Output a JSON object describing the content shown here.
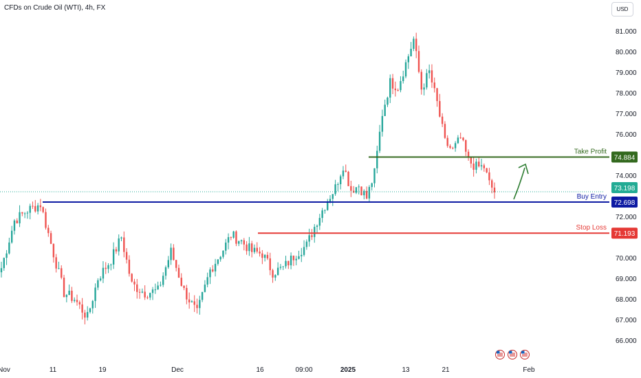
{
  "header": {
    "title": "CFDs on Crude Oil (WTI), 4h, FX",
    "currency": "USD"
  },
  "colors": {
    "up": "#26a69a",
    "down": "#ef5350",
    "take_profit": "#33691e",
    "buy_entry": "#0d1aa3",
    "stop_loss": "#e53935",
    "current": "#22ab94",
    "arrow": "#2e7d32"
  },
  "chart_data": {
    "type": "candlestick",
    "title": "CFDs on Crude Oil (WTI), 4h, FX",
    "ylim": [
      65.4,
      81.4
    ],
    "y_ticks": [
      "81.000",
      "80.000",
      "79.000",
      "78.000",
      "77.000",
      "76.000",
      "74.000",
      "72.000",
      "70.000",
      "69.000",
      "68.000",
      "67.000",
      "66.000"
    ],
    "x_ticks": [
      {
        "label": "Nov",
        "bold": false
      },
      {
        "label": "11",
        "bold": false
      },
      {
        "label": "19",
        "bold": false
      },
      {
        "label": "Dec",
        "bold": false
      },
      {
        "label": "16",
        "bold": false
      },
      {
        "label": "09:00",
        "bold": false
      },
      {
        "label": "2025",
        "bold": true
      },
      {
        "label": "13",
        "bold": false
      },
      {
        "label": "21",
        "bold": false
      },
      {
        "label": "Feb",
        "bold": false
      }
    ],
    "keypoints": [
      {
        "t": 0,
        "p": 69.5
      },
      {
        "t": 5,
        "p": 71.8
      },
      {
        "t": 10,
        "p": 72.3
      },
      {
        "t": 15,
        "p": 72.6
      },
      {
        "t": 20,
        "p": 70.2
      },
      {
        "t": 24,
        "p": 68.3
      },
      {
        "t": 28,
        "p": 68.0
      },
      {
        "t": 33,
        "p": 67.1
      },
      {
        "t": 37,
        "p": 69.0
      },
      {
        "t": 42,
        "p": 69.9
      },
      {
        "t": 46,
        "p": 71.0
      },
      {
        "t": 50,
        "p": 68.7
      },
      {
        "t": 55,
        "p": 68.3
      },
      {
        "t": 60,
        "p": 68.4
      },
      {
        "t": 65,
        "p": 70.3
      },
      {
        "t": 70,
        "p": 68.4
      },
      {
        "t": 75,
        "p": 67.3
      },
      {
        "t": 80,
        "p": 69.4
      },
      {
        "t": 85,
        "p": 70.4
      },
      {
        "t": 88,
        "p": 71.1
      },
      {
        "t": 92,
        "p": 70.8
      },
      {
        "t": 96,
        "p": 70.3
      },
      {
        "t": 100,
        "p": 70.2
      },
      {
        "t": 104,
        "p": 69.3
      },
      {
        "t": 108,
        "p": 69.5
      },
      {
        "t": 113,
        "p": 70.2
      },
      {
        "t": 117,
        "p": 70.6
      },
      {
        "t": 121,
        "p": 71.8
      },
      {
        "t": 125,
        "p": 72.8
      },
      {
        "t": 128,
        "p": 73.4
      },
      {
        "t": 131,
        "p": 74.5
      },
      {
        "t": 134,
        "p": 73.3
      },
      {
        "t": 137,
        "p": 73.5
      },
      {
        "t": 140,
        "p": 72.9
      },
      {
        "t": 143,
        "p": 74.1
      },
      {
        "t": 146,
        "p": 77.0
      },
      {
        "t": 149,
        "p": 78.5
      },
      {
        "t": 152,
        "p": 78.3
      },
      {
        "t": 156,
        "p": 79.8
      },
      {
        "t": 158,
        "p": 80.6
      },
      {
        "t": 161,
        "p": 78.2
      },
      {
        "t": 164,
        "p": 79.0
      },
      {
        "t": 167,
        "p": 77.5
      },
      {
        "t": 170,
        "p": 75.6
      },
      {
        "t": 173,
        "p": 75.2
      },
      {
        "t": 176,
        "p": 75.8
      },
      {
        "t": 179,
        "p": 74.7
      },
      {
        "t": 182,
        "p": 74.4
      },
      {
        "t": 185,
        "p": 74.4
      },
      {
        "t": 187,
        "p": 73.6
      },
      {
        "t": 189,
        "p": 73.2
      }
    ],
    "levels": [
      {
        "name": "Take Profit",
        "value": "74.884",
        "price": 74.884,
        "color_key": "take_profit"
      },
      {
        "name": "Buy Entry",
        "value": "72.698",
        "price": 72.698,
        "color_key": "buy_entry"
      },
      {
        "name": "Stop Loss",
        "value": "71.193",
        "price": 71.193,
        "color_key": "stop_loss"
      }
    ],
    "current_price": {
      "value": "73.198",
      "price": 73.198
    },
    "calendar_events": 3
  }
}
